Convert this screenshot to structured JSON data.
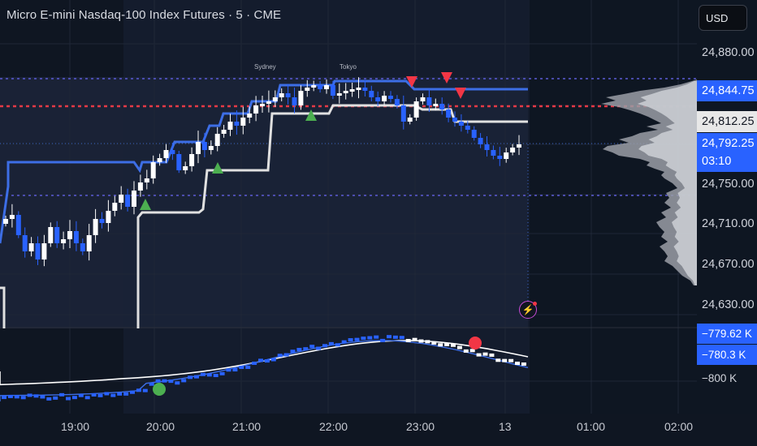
{
  "header": {
    "title": "Micro E-mini Nasdaq-100 Index Futures · 5 · CME",
    "currency": "USD"
  },
  "sessions": {
    "sydney": "Sydney",
    "tokyo": "Tokyo"
  },
  "price_axis": {
    "ticks": [
      "24,880.00",
      "24,750.00",
      "24,710.00",
      "24,670.00",
      "24,630.00"
    ],
    "label_upper": "24,844.75",
    "label_mid": "24,812.25",
    "label_current": "24,792.25",
    "countdown": "03:10"
  },
  "indicator_axis": {
    "label_a": "−779.62 K",
    "label_b": "−780.3 K",
    "tick": "−800 K"
  },
  "time_axis": [
    "19:00",
    "20:00",
    "21:00",
    "22:00",
    "23:00",
    "13",
    "01:00",
    "02:00"
  ],
  "colors": {
    "background": "#0f1622",
    "session_shade": "#1a2236",
    "bull_candle": "#ffffff",
    "bear_candle": "#2962ff",
    "upper_band": "#3d6ee6",
    "lower_band": "#e0e0e0",
    "buy_triangle": "#4caf50",
    "sell_triangle": "#f23645",
    "dotted_red": "#e53946",
    "dotted_blue": "#5b5bd6",
    "volume_profile": "#9a9ea6",
    "accent_blue": "#2962ff"
  },
  "icons": {
    "alert": "lightning-icon"
  }
}
